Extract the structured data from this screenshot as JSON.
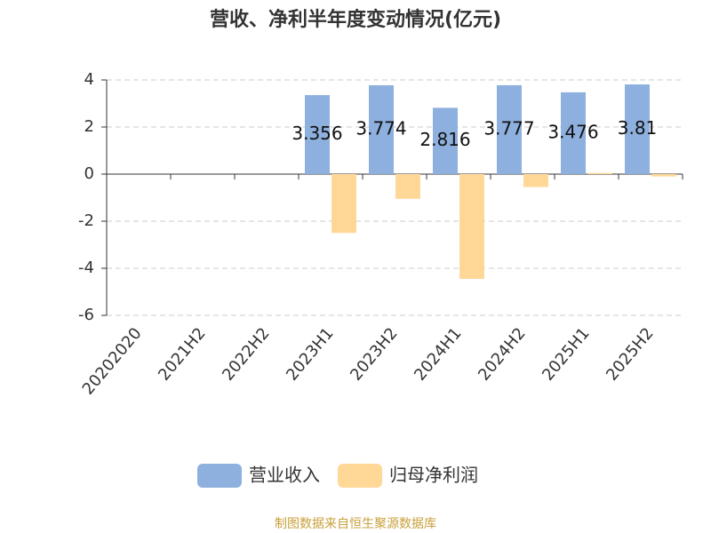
{
  "chart_data": {
    "type": "bar",
    "title": "营收、净利半年度变动情况(亿元)",
    "categories": [
      "20202020",
      "2021H2",
      "2022H2",
      "2023H1",
      "2023H2",
      "2024H1",
      "2024H2",
      "2025H1",
      "2025H2"
    ],
    "series": [
      {
        "name": "营业收入",
        "color": "#8eb0de",
        "values": [
          null,
          null,
          null,
          3.356,
          3.774,
          2.816,
          3.777,
          3.476,
          3.81
        ]
      },
      {
        "name": "归母净利润",
        "color": "#ffd898",
        "values": [
          null,
          null,
          null,
          -2.5,
          -1.05,
          -4.45,
          -0.55,
          0.05,
          -0.1
        ]
      }
    ],
    "ylim": [
      -6,
      4
    ],
    "yticks": [
      -6,
      -4,
      -2,
      0,
      2,
      4
    ],
    "grid": true,
    "source": "制图数据来自恒生聚源数据库"
  }
}
